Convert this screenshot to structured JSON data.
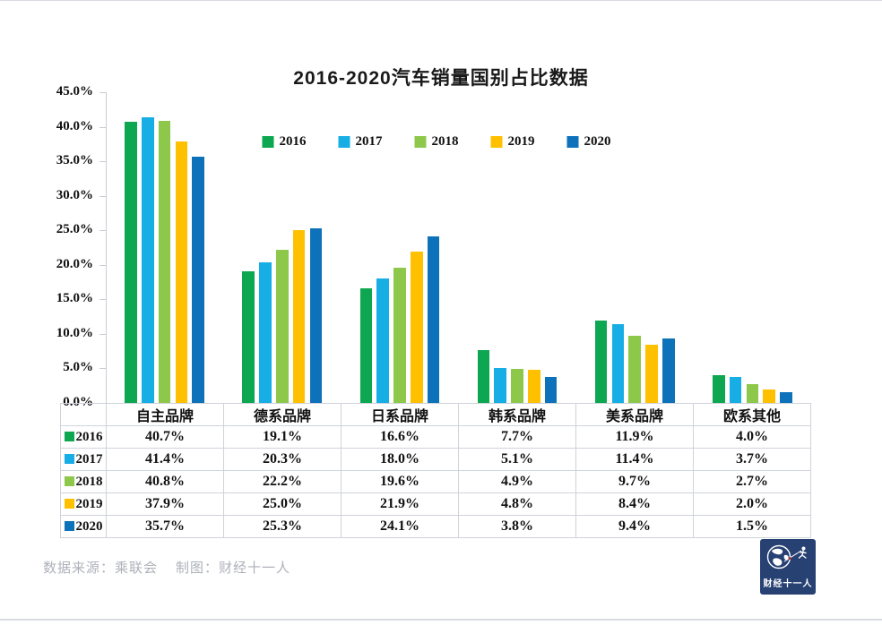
{
  "title": "2016-2020汽车销量国别占比数据",
  "colors": {
    "series_2016": "#0CA750",
    "series_2017": "#17ADE5",
    "series_2018": "#8DC84B",
    "series_2019": "#FFC000",
    "series_2020": "#0E72BA",
    "axis_line": "#C9CCD3",
    "table_border": "#CFD3DA",
    "footer_text": "#AEB1BA",
    "logo_bg": "#274173"
  },
  "chart_data": {
    "type": "bar",
    "title": "2016-2020汽车销量国别占比数据",
    "categories": [
      "自主品牌",
      "德系品牌",
      "日系品牌",
      "韩系品牌",
      "美系品牌",
      "欧系其他"
    ],
    "series": [
      {
        "name": "2016",
        "color": "#0CA750",
        "values": [
          40.7,
          19.1,
          16.6,
          7.7,
          11.9,
          4.0
        ]
      },
      {
        "name": "2017",
        "color": "#17ADE5",
        "values": [
          41.4,
          20.3,
          18.0,
          5.1,
          11.4,
          3.7
        ]
      },
      {
        "name": "2018",
        "color": "#8DC84B",
        "values": [
          40.8,
          22.2,
          19.6,
          4.9,
          9.7,
          2.7
        ]
      },
      {
        "name": "2019",
        "color": "#FFC000",
        "values": [
          37.9,
          25.0,
          21.9,
          4.8,
          8.4,
          2.0
        ]
      },
      {
        "name": "2020",
        "color": "#0E72BA",
        "values": [
          35.7,
          25.3,
          24.1,
          3.8,
          9.4,
          1.5
        ]
      }
    ],
    "ylim": [
      0,
      45
    ],
    "y_ticks": [
      "45.0%",
      "40.0%",
      "35.0%",
      "30.0%",
      "25.0%",
      "20.0%",
      "15.0%",
      "10.0%",
      "5.0%",
      "0.0%"
    ],
    "grid": false,
    "legend_position": "top-center",
    "xlabel": "",
    "ylabel": ""
  },
  "table": {
    "headers": [
      "自主品牌",
      "德系品牌",
      "日系品牌",
      "韩系品牌",
      "美系品牌",
      "欧系其他"
    ],
    "row_labels": [
      "2016",
      "2017",
      "2018",
      "2019",
      "2020"
    ],
    "rows": [
      [
        "40.7%",
        "19.1%",
        "16.6%",
        "7.7%",
        "11.9%",
        "4.0%"
      ],
      [
        "41.4%",
        "20.3%",
        "18.0%",
        "5.1%",
        "11.4%",
        "3.7%"
      ],
      [
        "40.8%",
        "22.2%",
        "19.6%",
        "4.9%",
        "9.7%",
        "2.7%"
      ],
      [
        "37.9%",
        "25.0%",
        "21.9%",
        "4.8%",
        "8.4%",
        "2.0%"
      ],
      [
        "35.7%",
        "25.3%",
        "24.1%",
        "3.8%",
        "9.4%",
        "1.5%"
      ]
    ]
  },
  "footer": {
    "source": "数据来源：乘联会",
    "credit": "制图：财经十一人"
  },
  "logo": {
    "text": "财经十一人"
  }
}
